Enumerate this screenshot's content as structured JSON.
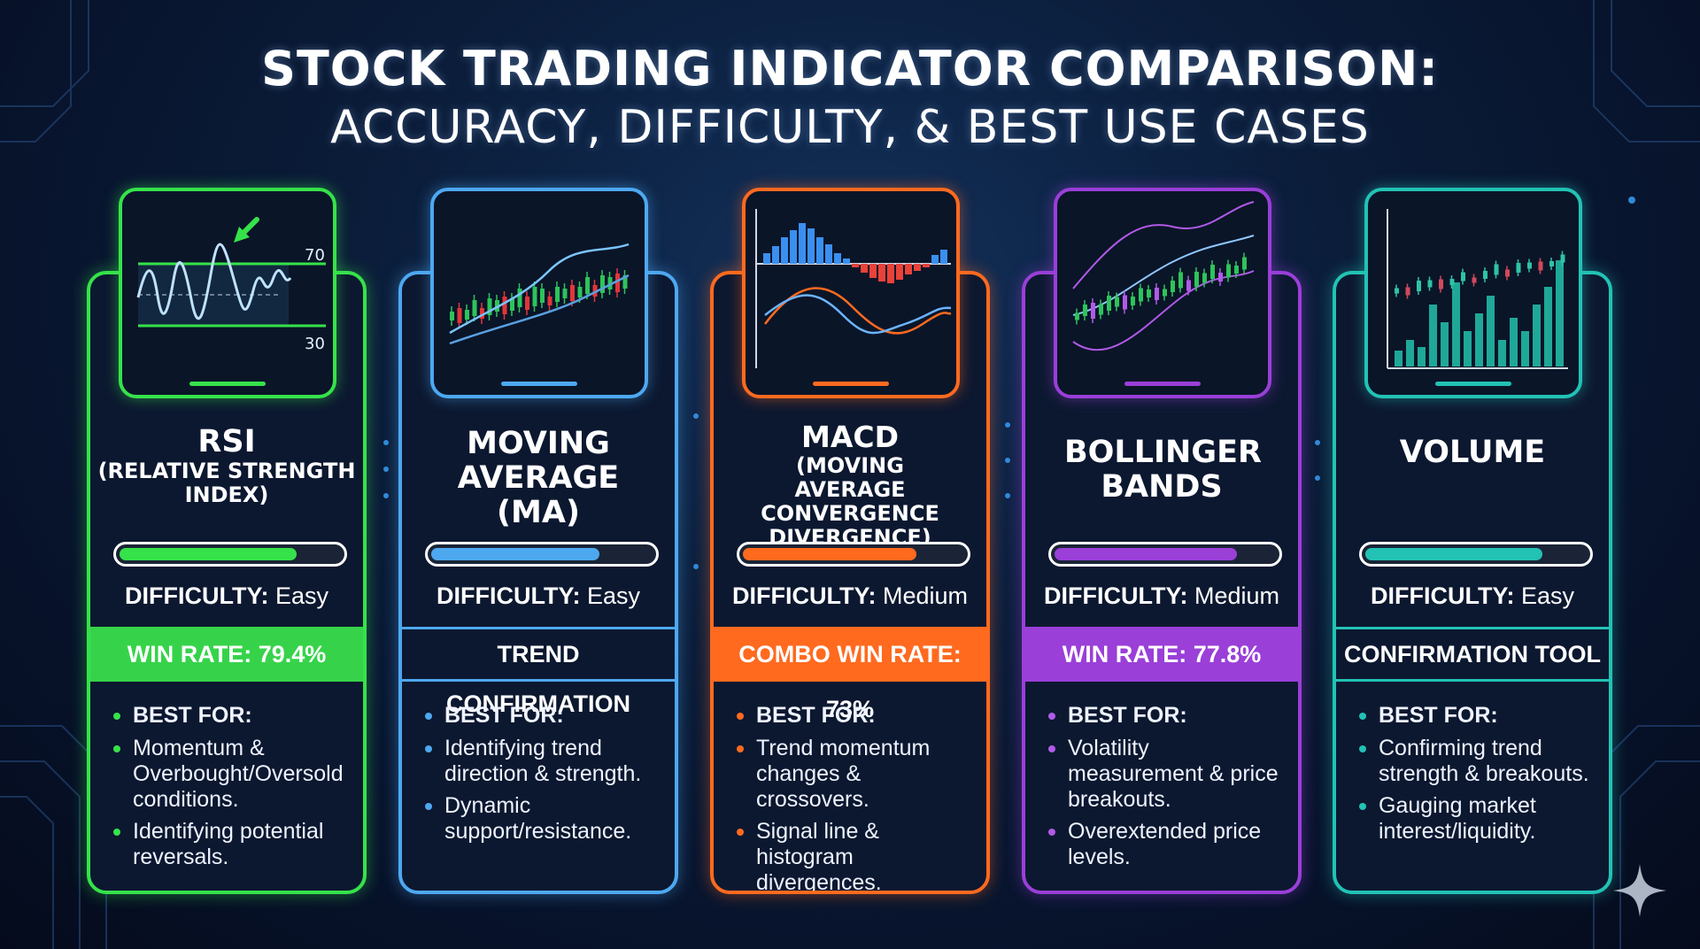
{
  "title": {
    "line1": "STOCK TRADING INDICATOR COMPARISON:",
    "line2": "ACCURACY, DIFFICULTY, & BEST USE CASES"
  },
  "cards": [
    {
      "name": "RSI",
      "subname": "(RELATIVE STRENGTH INDEX)",
      "color": "#36e24a",
      "chart_labels": {
        "upper": "70",
        "lower": "30"
      },
      "difficulty_label": "DIFFICULTY:",
      "difficulty_value": "Easy",
      "meter_level": 0.72,
      "band_text": "WIN RATE: 79.4%",
      "band_style": "filled",
      "best_for": "BEST FOR:",
      "items": [
        "Momentum & Overbought/Oversold conditions.",
        "Identifying potential reversals."
      ],
      "icon": "rsi-chart-icon"
    },
    {
      "name": "MOVING AVERAGE (MA)",
      "subname": "",
      "color": "#4da8f0",
      "difficulty_label": "DIFFICULTY:",
      "difficulty_value": "Easy",
      "meter_level": 0.68,
      "band_text": "TREND CONFIRMATION",
      "band_style": "outline",
      "best_for": "BEST FOR:",
      "items": [
        "Identifying trend direction & strength.",
        "Dynamic support/resistance."
      ],
      "icon": "moving-average-chart-icon"
    },
    {
      "name": "MACD",
      "subname": "(MOVING AVERAGE CONVERGENCE DIVERGENCE)",
      "color": "#ff6a1f",
      "difficulty_label": "DIFFICULTY:",
      "difficulty_value": "Medium",
      "meter_level": 0.74,
      "band_text": "COMBO WIN RATE: 73%",
      "band_style": "filled",
      "best_for": "BEST FOR:",
      "items": [
        "Trend momentum changes & crossovers.",
        "Signal line & histogram divergences."
      ],
      "icon": "macd-chart-icon"
    },
    {
      "name": "BOLLINGER BANDS",
      "subname": "",
      "color": "#9a3fd8",
      "difficulty_label": "DIFFICULTY:",
      "difficulty_value": "Medium",
      "meter_level": 0.78,
      "band_text": "WIN RATE: 77.8%",
      "band_style": "filled",
      "best_for": "BEST FOR:",
      "items": [
        "Volatility measurement & price breakouts.",
        "Overextended price levels."
      ],
      "icon": "bollinger-bands-chart-icon"
    },
    {
      "name": "VOLUME",
      "subname": "",
      "color": "#22c2b4",
      "difficulty_label": "DIFFICULTY:",
      "difficulty_value": "Easy",
      "meter_level": 0.76,
      "band_text": "CONFIRMATION TOOL",
      "band_style": "outline",
      "best_for": "BEST FOR:",
      "items": [
        "Confirming trend strength & breakouts.",
        "Gauging market interest/liquidity."
      ],
      "icon": "volume-chart-icon"
    }
  ]
}
